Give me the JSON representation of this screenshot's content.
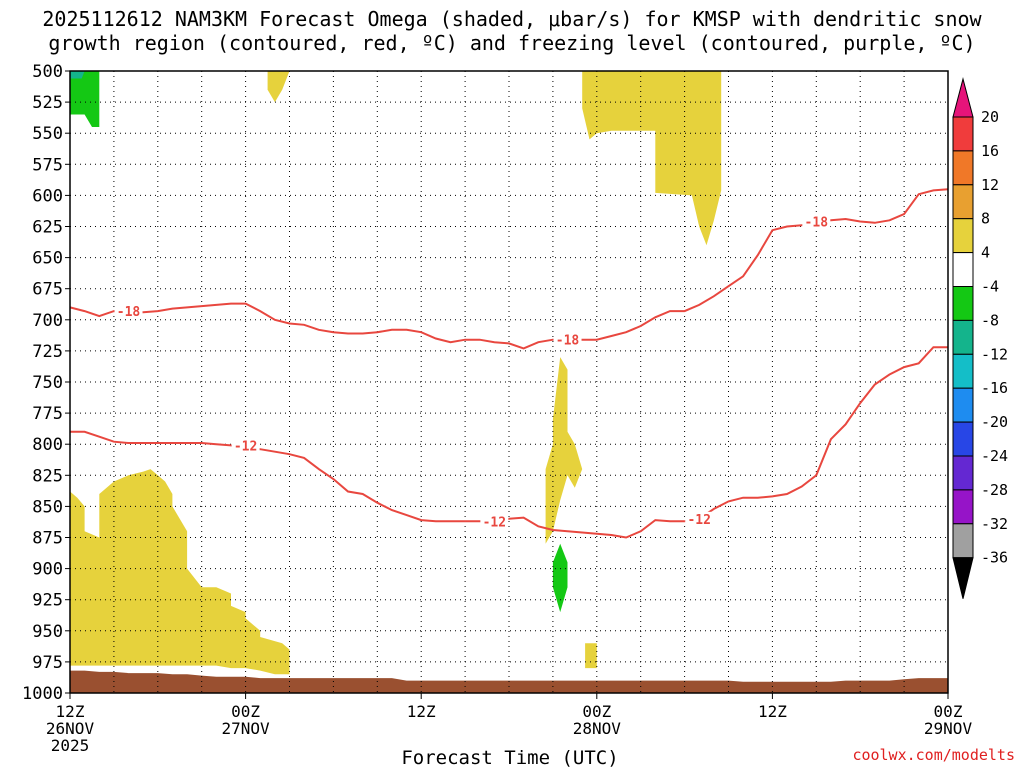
{
  "chart_data": {
    "type": "contour",
    "title_line1": "2025112612 NAM3KM Forecast Omega (shaded, μbar/s) for KMSP with dendritic snow",
    "title_line2": "growth region (contoured, red, ºC) and freezing level (contoured, purple, ºC)",
    "xlabel": "Forecast Time (UTC)",
    "credit": "coolwx.com/modelts",
    "x_range_hours": [
      0,
      60
    ],
    "ylim": [
      1000,
      500
    ],
    "y_ticks": [
      500,
      525,
      550,
      575,
      600,
      625,
      650,
      675,
      700,
      725,
      750,
      775,
      800,
      825,
      850,
      875,
      900,
      925,
      950,
      975,
      1000
    ],
    "x_ticks": [
      {
        "hour": 0,
        "line1": "12Z",
        "line2": "26NOV",
        "line3": "2025"
      },
      {
        "hour": 12,
        "line1": "00Z",
        "line2": "27NOV",
        "line3": ""
      },
      {
        "hour": 24,
        "line1": "12Z",
        "line2": "",
        "line3": ""
      },
      {
        "hour": 36,
        "line1": "00Z",
        "line2": "28NOV",
        "line3": ""
      },
      {
        "hour": 48,
        "line1": "12Z",
        "line2": "",
        "line3": ""
      },
      {
        "hour": 60,
        "line1": "00Z",
        "line2": "29NOV",
        "line3": ""
      }
    ],
    "colorbar": {
      "labels": [
        "20",
        "16",
        "12",
        "8",
        "4",
        "-4",
        "-8",
        "-12",
        "-16",
        "-20",
        "-24",
        "-28",
        "-32",
        "-36"
      ],
      "segments": [
        {
          "color": "#f03c3c"
        },
        {
          "color": "#f07828"
        },
        {
          "color": "#e8a030"
        },
        {
          "color": "#e6d23c"
        },
        {
          "color": "#ffffff"
        },
        {
          "color": "#14c814"
        },
        {
          "color": "#14b48c"
        },
        {
          "color": "#14bec8"
        },
        {
          "color": "#1e8cf0"
        },
        {
          "color": "#2846e6"
        },
        {
          "color": "#6428d2"
        },
        {
          "color": "#9614c8"
        },
        {
          "color": "#a0a0a0"
        }
      ],
      "top_color": "#e6147a",
      "bottom_color": "#000000"
    },
    "contours": [
      {
        "name": "-18",
        "color": "#e8473f",
        "points": [
          [
            0,
            690
          ],
          [
            1,
            693
          ],
          [
            2,
            697
          ],
          [
            3,
            693
          ],
          [
            4,
            694
          ],
          [
            5,
            694
          ],
          [
            6,
            693
          ],
          [
            7,
            691
          ],
          [
            8,
            690
          ],
          [
            9,
            689
          ],
          [
            10,
            688
          ],
          [
            11,
            687
          ],
          [
            12,
            687
          ],
          [
            13,
            693
          ],
          [
            14,
            700
          ],
          [
            15,
            703
          ],
          [
            16,
            704
          ],
          [
            17,
            708
          ],
          [
            18,
            710
          ],
          [
            19,
            711
          ],
          [
            20,
            711
          ],
          [
            21,
            710
          ],
          [
            22,
            708
          ],
          [
            23,
            708
          ],
          [
            24,
            710
          ],
          [
            25,
            715
          ],
          [
            26,
            718
          ],
          [
            27,
            716
          ],
          [
            28,
            716
          ],
          [
            29,
            718
          ],
          [
            30,
            719
          ],
          [
            31,
            723
          ],
          [
            32,
            718
          ],
          [
            33,
            716
          ],
          [
            34,
            716
          ],
          [
            35,
            716
          ],
          [
            36,
            716
          ],
          [
            37,
            713
          ],
          [
            38,
            710
          ],
          [
            39,
            705
          ],
          [
            40,
            698
          ],
          [
            41,
            693
          ],
          [
            42,
            693
          ],
          [
            43,
            688
          ],
          [
            44,
            681
          ],
          [
            45,
            673
          ],
          [
            46,
            665
          ],
          [
            47,
            648
          ],
          [
            48,
            628
          ],
          [
            49,
            625
          ],
          [
            50,
            624
          ],
          [
            51,
            621
          ],
          [
            52,
            620
          ],
          [
            53,
            619
          ],
          [
            54,
            621
          ],
          [
            55,
            622
          ],
          [
            56,
            620
          ],
          [
            57,
            615
          ],
          [
            58,
            599
          ],
          [
            59,
            596
          ],
          [
            60,
            595
          ]
        ],
        "labels": [
          {
            "hour": 4,
            "p": 693
          },
          {
            "hour": 51,
            "p": 621
          },
          {
            "hour": 34,
            "p": 716
          }
        ]
      },
      {
        "name": "-12",
        "color": "#e8473f",
        "points": [
          [
            0,
            790
          ],
          [
            1,
            790
          ],
          [
            2,
            794
          ],
          [
            3,
            798
          ],
          [
            4,
            799
          ],
          [
            5,
            799
          ],
          [
            6,
            799
          ],
          [
            7,
            799
          ],
          [
            8,
            799
          ],
          [
            9,
            799
          ],
          [
            10,
            800
          ],
          [
            11,
            801
          ],
          [
            12,
            803
          ],
          [
            13,
            804
          ],
          [
            14,
            806
          ],
          [
            15,
            808
          ],
          [
            16,
            811
          ],
          [
            17,
            820
          ],
          [
            18,
            828
          ],
          [
            19,
            838
          ],
          [
            20,
            840
          ],
          [
            21,
            847
          ],
          [
            22,
            853
          ],
          [
            23,
            857
          ],
          [
            24,
            861
          ],
          [
            25,
            862
          ],
          [
            26,
            862
          ],
          [
            27,
            862
          ],
          [
            28,
            862
          ],
          [
            29,
            862
          ],
          [
            30,
            860
          ],
          [
            31,
            859
          ],
          [
            32,
            866
          ],
          [
            33,
            869
          ],
          [
            34,
            870
          ],
          [
            35,
            871
          ],
          [
            36,
            872
          ],
          [
            37,
            873
          ],
          [
            38,
            875
          ],
          [
            39,
            870
          ],
          [
            40,
            861
          ],
          [
            41,
            862
          ],
          [
            42,
            862
          ],
          [
            43,
            860
          ],
          [
            44,
            852
          ],
          [
            45,
            846
          ],
          [
            46,
            843
          ],
          [
            47,
            843
          ],
          [
            48,
            842
          ],
          [
            49,
            840
          ],
          [
            50,
            834
          ],
          [
            51,
            825
          ],
          [
            52,
            796
          ],
          [
            53,
            784
          ],
          [
            54,
            767
          ],
          [
            55,
            752
          ],
          [
            56,
            744
          ],
          [
            57,
            738
          ],
          [
            58,
            735
          ],
          [
            59,
            722
          ],
          [
            60,
            722
          ]
        ],
        "labels": [
          {
            "hour": 12,
            "p": 801
          },
          {
            "hour": 29,
            "p": 862
          },
          {
            "hour": 43,
            "p": 860
          }
        ]
      }
    ],
    "shaded_regions": [
      {
        "class": "positive 4-8",
        "color": "#e6d23c",
        "points": [
          [
            0,
            838
          ],
          [
            0.5,
            843
          ],
          [
            1,
            850
          ],
          [
            1,
            870
          ],
          [
            2,
            875
          ],
          [
            2,
            840
          ],
          [
            3,
            830
          ],
          [
            4,
            825
          ],
          [
            5,
            822
          ],
          [
            5.5,
            820
          ],
          [
            6,
            825
          ],
          [
            6.5,
            830
          ],
          [
            7,
            840
          ],
          [
            7,
            850
          ],
          [
            8,
            870
          ],
          [
            8,
            900
          ],
          [
            9,
            915
          ],
          [
            10,
            915
          ],
          [
            11,
            920
          ],
          [
            11,
            930
          ],
          [
            12,
            935
          ],
          [
            12,
            940
          ],
          [
            13,
            950
          ],
          [
            13,
            955
          ],
          [
            14.5,
            960
          ],
          [
            15,
            965
          ],
          [
            15,
            985
          ],
          [
            14,
            985
          ],
          [
            13,
            982
          ],
          [
            12,
            980
          ],
          [
            11,
            980
          ],
          [
            10,
            978
          ],
          [
            9,
            978
          ],
          [
            8,
            978
          ],
          [
            7,
            978
          ],
          [
            6,
            978
          ],
          [
            5,
            978
          ],
          [
            4,
            978
          ],
          [
            3,
            978
          ],
          [
            2,
            978
          ],
          [
            1,
            978
          ],
          [
            0,
            978
          ]
        ]
      },
      {
        "class": "positive 4-8",
        "color": "#e6d23c",
        "points": [
          [
            13.5,
            500
          ],
          [
            15,
            500
          ],
          [
            14.5,
            515
          ],
          [
            14,
            525
          ],
          [
            13.5,
            515
          ]
        ]
      },
      {
        "class": "positive 4-8",
        "color": "#e6d23c",
        "points": [
          [
            35,
            500
          ],
          [
            44.5,
            500
          ],
          [
            44.5,
            585
          ],
          [
            44.5,
            596
          ],
          [
            44,
            620
          ],
          [
            43.5,
            640
          ],
          [
            43,
            625
          ],
          [
            42.5,
            600
          ],
          [
            40,
            598
          ],
          [
            40,
            548
          ],
          [
            37,
            548
          ],
          [
            36,
            550
          ],
          [
            35.5,
            555
          ],
          [
            35,
            530
          ]
        ]
      },
      {
        "class": "positive 4-8",
        "color": "#e6d23c",
        "points": [
          [
            33.5,
            730
          ],
          [
            34,
            740
          ],
          [
            34,
            760
          ],
          [
            34,
            790
          ],
          [
            34.5,
            800
          ],
          [
            35,
            820
          ],
          [
            34.5,
            835
          ],
          [
            34,
            825
          ],
          [
            33.5,
            845
          ],
          [
            33,
            870
          ],
          [
            32.5,
            880
          ],
          [
            32.5,
            860
          ],
          [
            32.5,
            820
          ],
          [
            33,
            800
          ],
          [
            33,
            780
          ]
        ]
      },
      {
        "class": "positive 4-8",
        "color": "#e6d23c",
        "points": [
          [
            35.2,
            960
          ],
          [
            36,
            960
          ],
          [
            36,
            980
          ],
          [
            35.2,
            980
          ]
        ]
      },
      {
        "class": "negative -8 to -4",
        "color": "#14c814",
        "points": [
          [
            0,
            500
          ],
          [
            2,
            500
          ],
          [
            2,
            530
          ],
          [
            2,
            545
          ],
          [
            1.5,
            545
          ],
          [
            1,
            535
          ],
          [
            0,
            535
          ]
        ]
      },
      {
        "class": "negative -8 to -4",
        "color": "#14c814",
        "points": [
          [
            33.5,
            880
          ],
          [
            34,
            895
          ],
          [
            34,
            915
          ],
          [
            33.5,
            935
          ],
          [
            33,
            915
          ],
          [
            33,
            895
          ]
        ]
      },
      {
        "class": "negative -12 to -8",
        "color": "#14b48c",
        "points": [
          [
            0,
            500
          ],
          [
            1,
            500
          ],
          [
            0.8,
            506
          ],
          [
            0,
            506
          ]
        ]
      }
    ],
    "terrain": {
      "color": "#9a5030",
      "top_pressure": [
        [
          0,
          982
        ],
        [
          1,
          982
        ],
        [
          2,
          983
        ],
        [
          3,
          983
        ],
        [
          4,
          984
        ],
        [
          5,
          984
        ],
        [
          6,
          984
        ],
        [
          7,
          985
        ],
        [
          8,
          985
        ],
        [
          9,
          986
        ],
        [
          10,
          987
        ],
        [
          11,
          987
        ],
        [
          12,
          987
        ],
        [
          13,
          988
        ],
        [
          14,
          988
        ],
        [
          15,
          988
        ],
        [
          16,
          988
        ],
        [
          17,
          988
        ],
        [
          18,
          988
        ],
        [
          19,
          988
        ],
        [
          20,
          988
        ],
        [
          21,
          988
        ],
        [
          22,
          988
        ],
        [
          23,
          990
        ],
        [
          24,
          990
        ],
        [
          25,
          990
        ],
        [
          26,
          990
        ],
        [
          27,
          990
        ],
        [
          28,
          990
        ],
        [
          29,
          990
        ],
        [
          30,
          990
        ],
        [
          31,
          990
        ],
        [
          32,
          990
        ],
        [
          33,
          990
        ],
        [
          34,
          990
        ],
        [
          35,
          990
        ],
        [
          36,
          990
        ],
        [
          37,
          990
        ],
        [
          38,
          990
        ],
        [
          39,
          990
        ],
        [
          40,
          990
        ],
        [
          41,
          990
        ],
        [
          42,
          990
        ],
        [
          43,
          990
        ],
        [
          44,
          990
        ],
        [
          45,
          990
        ],
        [
          46,
          991
        ],
        [
          47,
          991
        ],
        [
          48,
          991
        ],
        [
          49,
          991
        ],
        [
          50,
          991
        ],
        [
          51,
          991
        ],
        [
          52,
          991
        ],
        [
          53,
          990
        ],
        [
          54,
          990
        ],
        [
          55,
          990
        ],
        [
          56,
          990
        ],
        [
          57,
          989
        ],
        [
          58,
          988
        ],
        [
          59,
          988
        ],
        [
          60,
          988
        ]
      ]
    }
  }
}
